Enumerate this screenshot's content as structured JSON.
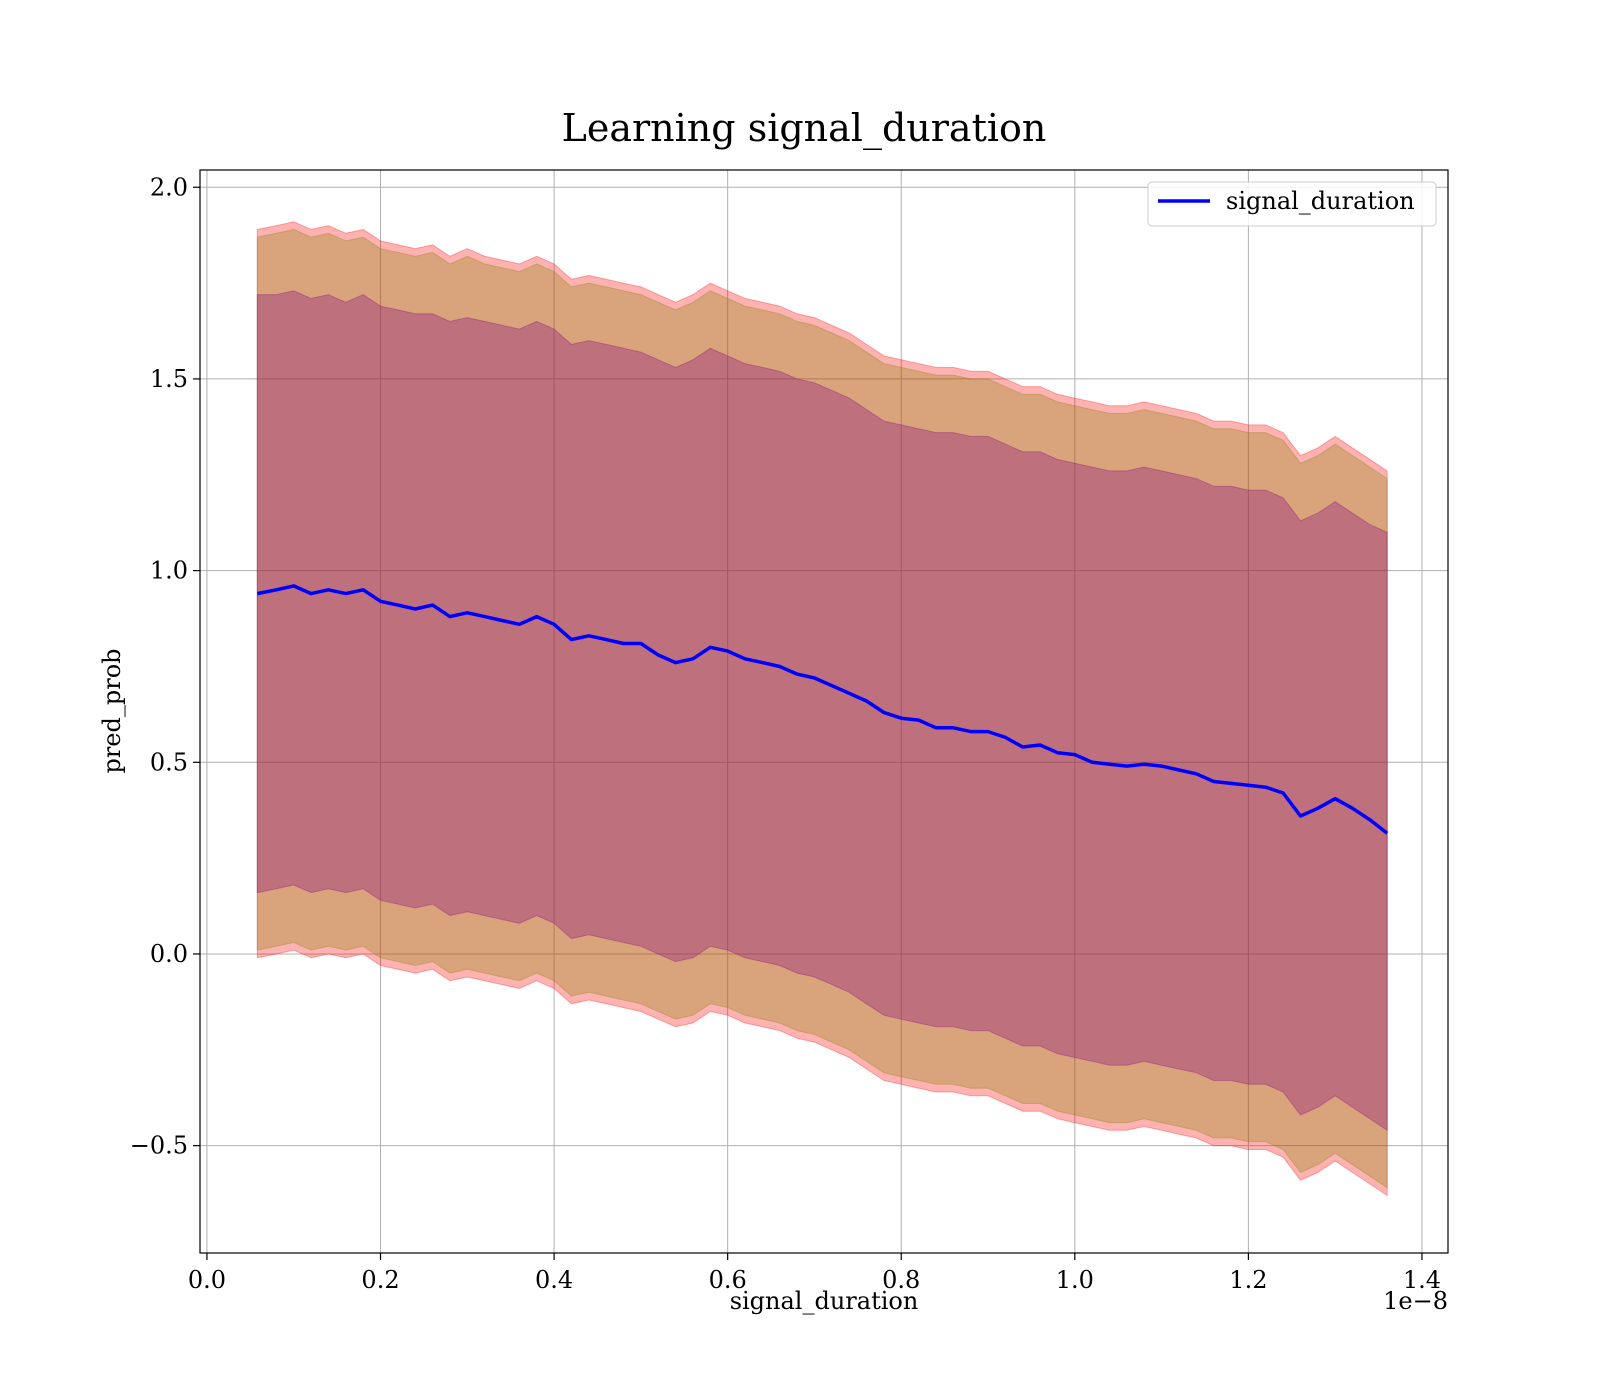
{
  "chart_data": {
    "type": "line",
    "title": "Learning signal_duration",
    "xlabel": "signal_duration",
    "ylabel": "pred_prob",
    "x_offset_label": "1e−8",
    "xlim": [
      -0.008,
      1.43
    ],
    "ylim": [
      -0.78,
      2.045
    ],
    "grid": true,
    "legend_position": "top-right",
    "x_ticks": [
      {
        "value": 0.0,
        "label": "0.0"
      },
      {
        "value": 0.2,
        "label": "0.2"
      },
      {
        "value": 0.4,
        "label": "0.4"
      },
      {
        "value": 0.6,
        "label": "0.6"
      },
      {
        "value": 0.8,
        "label": "0.8"
      },
      {
        "value": 1.0,
        "label": "1.0"
      },
      {
        "value": 1.2,
        "label": "1.2"
      },
      {
        "value": 1.4,
        "label": "1.4"
      }
    ],
    "y_ticks": [
      {
        "value": 2.0,
        "label": "2.0"
      },
      {
        "value": 1.5,
        "label": "1.5"
      },
      {
        "value": 1.0,
        "label": "1.0"
      },
      {
        "value": 0.5,
        "label": "0.5"
      },
      {
        "value": 0.0,
        "label": "0.0"
      },
      {
        "value": -0.5,
        "label": "−0.5"
      }
    ],
    "x": [
      0.058,
      0.08,
      0.1,
      0.12,
      0.14,
      0.16,
      0.18,
      0.2,
      0.22,
      0.24,
      0.26,
      0.28,
      0.3,
      0.32,
      0.34,
      0.36,
      0.38,
      0.4,
      0.42,
      0.44,
      0.46,
      0.48,
      0.5,
      0.52,
      0.54,
      0.56,
      0.58,
      0.6,
      0.62,
      0.64,
      0.66,
      0.68,
      0.7,
      0.72,
      0.74,
      0.76,
      0.78,
      0.8,
      0.82,
      0.84,
      0.86,
      0.88,
      0.9,
      0.92,
      0.94,
      0.96,
      0.98,
      1.0,
      1.02,
      1.04,
      1.06,
      1.08,
      1.1,
      1.12,
      1.14,
      1.16,
      1.18,
      1.2,
      1.22,
      1.24,
      1.26,
      1.28,
      1.3,
      1.32,
      1.34,
      1.36
    ],
    "series": [
      {
        "name": "signal_duration",
        "color": "#0000ff",
        "values": [
          0.94,
          0.95,
          0.96,
          0.94,
          0.95,
          0.94,
          0.95,
          0.92,
          0.91,
          0.9,
          0.91,
          0.88,
          0.89,
          0.88,
          0.87,
          0.86,
          0.88,
          0.86,
          0.82,
          0.83,
          0.82,
          0.81,
          0.81,
          0.78,
          0.76,
          0.77,
          0.8,
          0.79,
          0.77,
          0.76,
          0.75,
          0.73,
          0.72,
          0.7,
          0.68,
          0.66,
          0.63,
          0.615,
          0.61,
          0.59,
          0.59,
          0.58,
          0.58,
          0.565,
          0.54,
          0.545,
          0.525,
          0.52,
          0.5,
          0.495,
          0.49,
          0.495,
          0.49,
          0.48,
          0.47,
          0.45,
          0.445,
          0.44,
          0.435,
          0.42,
          0.36,
          0.38,
          0.405,
          0.38,
          0.35,
          0.315
        ]
      }
    ],
    "bands": [
      {
        "color": "#ff0000",
        "opacity": 0.3,
        "upper": [
          1.89,
          1.9,
          1.91,
          1.89,
          1.9,
          1.88,
          1.89,
          1.86,
          1.85,
          1.84,
          1.85,
          1.82,
          1.84,
          1.82,
          1.81,
          1.8,
          1.82,
          1.8,
          1.76,
          1.77,
          1.76,
          1.75,
          1.74,
          1.72,
          1.7,
          1.72,
          1.75,
          1.73,
          1.71,
          1.7,
          1.69,
          1.67,
          1.66,
          1.64,
          1.62,
          1.59,
          1.56,
          1.55,
          1.54,
          1.53,
          1.53,
          1.52,
          1.52,
          1.5,
          1.48,
          1.48,
          1.46,
          1.45,
          1.44,
          1.43,
          1.43,
          1.44,
          1.43,
          1.42,
          1.41,
          1.39,
          1.39,
          1.38,
          1.38,
          1.36,
          1.3,
          1.32,
          1.35,
          1.32,
          1.29,
          1.26
        ],
        "lower": [
          -0.01,
          0.0,
          0.01,
          -0.01,
          0.0,
          -0.01,
          0.0,
          -0.03,
          -0.04,
          -0.05,
          -0.04,
          -0.07,
          -0.06,
          -0.07,
          -0.08,
          -0.09,
          -0.07,
          -0.09,
          -0.13,
          -0.12,
          -0.13,
          -0.14,
          -0.15,
          -0.17,
          -0.19,
          -0.18,
          -0.15,
          -0.16,
          -0.18,
          -0.19,
          -0.2,
          -0.22,
          -0.23,
          -0.25,
          -0.27,
          -0.3,
          -0.33,
          -0.34,
          -0.35,
          -0.36,
          -0.36,
          -0.37,
          -0.37,
          -0.39,
          -0.41,
          -0.41,
          -0.43,
          -0.44,
          -0.45,
          -0.46,
          -0.46,
          -0.45,
          -0.46,
          -0.47,
          -0.48,
          -0.5,
          -0.5,
          -0.51,
          -0.51,
          -0.53,
          -0.59,
          -0.57,
          -0.54,
          -0.57,
          -0.6,
          -0.63
        ]
      },
      {
        "color": "#808000",
        "opacity": 0.3,
        "upper": [
          1.87,
          1.88,
          1.89,
          1.87,
          1.88,
          1.86,
          1.87,
          1.84,
          1.83,
          1.82,
          1.83,
          1.8,
          1.82,
          1.8,
          1.79,
          1.78,
          1.8,
          1.78,
          1.74,
          1.75,
          1.74,
          1.73,
          1.72,
          1.7,
          1.68,
          1.7,
          1.73,
          1.71,
          1.69,
          1.68,
          1.67,
          1.65,
          1.64,
          1.62,
          1.6,
          1.57,
          1.54,
          1.53,
          1.52,
          1.51,
          1.51,
          1.5,
          1.5,
          1.48,
          1.46,
          1.46,
          1.44,
          1.43,
          1.42,
          1.41,
          1.41,
          1.42,
          1.41,
          1.4,
          1.39,
          1.37,
          1.37,
          1.36,
          1.36,
          1.34,
          1.28,
          1.3,
          1.33,
          1.3,
          1.27,
          1.24
        ],
        "lower": [
          0.01,
          0.02,
          0.03,
          0.01,
          0.02,
          0.01,
          0.02,
          -0.01,
          -0.02,
          -0.03,
          -0.02,
          -0.05,
          -0.04,
          -0.05,
          -0.06,
          -0.07,
          -0.05,
          -0.07,
          -0.11,
          -0.1,
          -0.11,
          -0.12,
          -0.13,
          -0.15,
          -0.17,
          -0.16,
          -0.13,
          -0.14,
          -0.16,
          -0.17,
          -0.18,
          -0.2,
          -0.21,
          -0.23,
          -0.25,
          -0.28,
          -0.31,
          -0.32,
          -0.33,
          -0.34,
          -0.34,
          -0.35,
          -0.35,
          -0.37,
          -0.39,
          -0.39,
          -0.41,
          -0.42,
          -0.43,
          -0.44,
          -0.44,
          -0.43,
          -0.44,
          -0.45,
          -0.46,
          -0.48,
          -0.48,
          -0.49,
          -0.49,
          -0.51,
          -0.57,
          -0.55,
          -0.52,
          -0.55,
          -0.58,
          -0.61
        ]
      },
      {
        "color": "#800080",
        "opacity": 0.3,
        "upper": [
          1.72,
          1.72,
          1.73,
          1.71,
          1.72,
          1.7,
          1.72,
          1.69,
          1.68,
          1.67,
          1.67,
          1.65,
          1.66,
          1.65,
          1.64,
          1.63,
          1.65,
          1.63,
          1.59,
          1.6,
          1.59,
          1.58,
          1.57,
          1.55,
          1.53,
          1.55,
          1.58,
          1.56,
          1.54,
          1.53,
          1.52,
          1.5,
          1.49,
          1.47,
          1.45,
          1.42,
          1.39,
          1.38,
          1.37,
          1.36,
          1.36,
          1.35,
          1.35,
          1.33,
          1.31,
          1.31,
          1.29,
          1.28,
          1.27,
          1.26,
          1.26,
          1.27,
          1.26,
          1.25,
          1.24,
          1.22,
          1.22,
          1.21,
          1.21,
          1.19,
          1.13,
          1.15,
          1.18,
          1.15,
          1.12,
          1.1
        ],
        "lower": [
          0.16,
          0.17,
          0.18,
          0.16,
          0.17,
          0.16,
          0.17,
          0.14,
          0.13,
          0.12,
          0.13,
          0.1,
          0.11,
          0.1,
          0.09,
          0.08,
          0.1,
          0.08,
          0.04,
          0.05,
          0.04,
          0.03,
          0.02,
          0.0,
          -0.02,
          -0.01,
          0.02,
          0.01,
          -0.01,
          -0.02,
          -0.03,
          -0.05,
          -0.06,
          -0.08,
          -0.1,
          -0.13,
          -0.16,
          -0.17,
          -0.18,
          -0.19,
          -0.19,
          -0.2,
          -0.2,
          -0.22,
          -0.24,
          -0.24,
          -0.26,
          -0.27,
          -0.28,
          -0.29,
          -0.29,
          -0.28,
          -0.29,
          -0.3,
          -0.31,
          -0.33,
          -0.33,
          -0.34,
          -0.34,
          -0.36,
          -0.42,
          -0.4,
          -0.37,
          -0.4,
          -0.43,
          -0.46
        ]
      }
    ],
    "legend": [
      {
        "label": "signal_duration",
        "color": "#0000ff"
      }
    ]
  }
}
